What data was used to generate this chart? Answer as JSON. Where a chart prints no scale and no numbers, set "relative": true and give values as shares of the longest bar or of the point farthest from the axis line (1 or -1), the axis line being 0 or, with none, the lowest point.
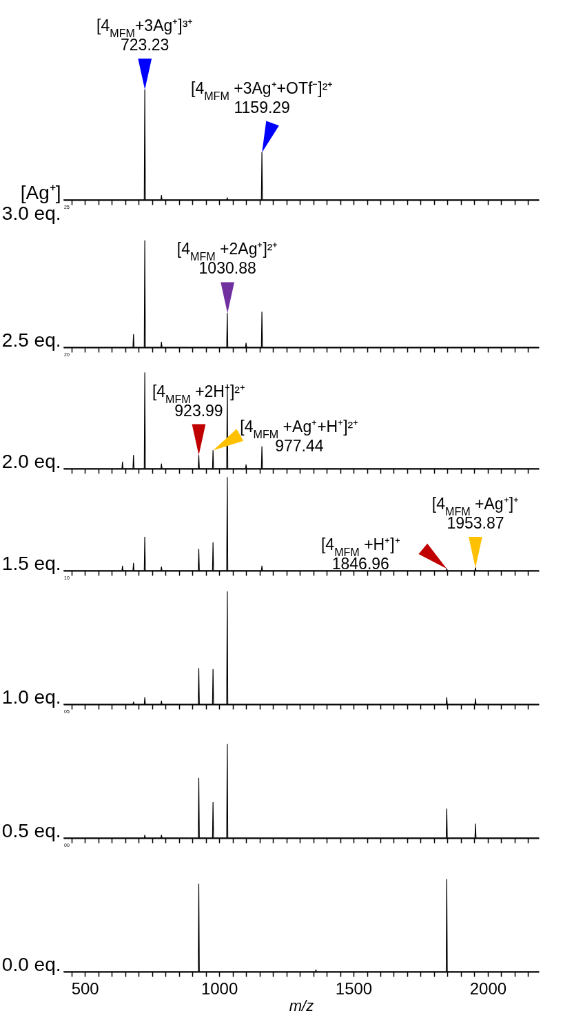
{
  "chart_data": [
    {
      "type": "line",
      "relative": true,
      "ylabel": "[Ag⁺]\n3.0 eq.",
      "tick_labels": false,
      "xlim": [
        420,
        2190
      ],
      "xticks": [
        {
          "value": 450,
          "label": null
        },
        500,
        {
          "value": 550,
          "label": null
        },
        {
          "value": 600,
          "label": null
        },
        {
          "value": 650,
          "label": null
        },
        {
          "value": 700,
          "label": null
        },
        {
          "value": 750,
          "label": null
        },
        {
          "value": 800,
          "label": null
        },
        {
          "value": 850,
          "label": null
        },
        {
          "value": 900,
          "label": null
        },
        {
          "value": 950,
          "label": null
        },
        1000,
        {
          "value": 1050,
          "label": null
        },
        {
          "value": 1100,
          "label": null
        },
        {
          "value": 1150,
          "label": null
        },
        {
          "value": 1200,
          "label": null
        },
        {
          "value": 1250,
          "label": null
        },
        {
          "value": 1300,
          "label": null
        },
        {
          "value": 1350,
          "label": null
        },
        {
          "value": 1400,
          "label": null
        },
        {
          "value": 1450,
          "label": null
        },
        1500,
        {
          "value": 1550,
          "label": null
        },
        {
          "value": 1600,
          "label": null
        },
        {
          "value": 1650,
          "label": null
        },
        {
          "value": 1700,
          "label": null
        },
        {
          "value": 1750,
          "label": null
        },
        {
          "value": 1800,
          "label": null
        },
        {
          "value": 1850,
          "label": null
        },
        {
          "value": 1900,
          "label": null
        },
        {
          "value": 1950,
          "label": null
        },
        2000,
        {
          "value": 2050,
          "label": null
        },
        {
          "value": 2100,
          "label": null
        },
        {
          "value": 2150,
          "label": null
        }
      ],
      "x": [
        420,
        721,
        723,
        725,
        783,
        785,
        787,
        1028,
        1030,
        1032,
        1157,
        1159,
        1161,
        2190
      ],
      "series": [
        {
          "color": "#000000",
          "values": [
            0,
            0,
            1,
            0,
            0,
            0.04,
            0,
            0,
            0.02,
            0,
            0,
            0.43,
            0,
            0
          ]
        }
      ],
      "annotations": [
        {
          "text": "[4$_{MFM}$+3Ag⁺]³⁺\n723.23",
          "x": 723.23,
          "y": 1
        },
        {
          "text": "[4$_{MFM}$ +3Ag⁺+OTf⁻]²⁺\n1159.29",
          "x": 1159.29,
          "y": 0.43
        },
        "25"
      ]
    },
    {
      "type": "line",
      "relative": true,
      "ylabel": "2.5 eq.",
      "tick_labels": false,
      "xlim": [
        420,
        2190
      ],
      "xticks": [
        {
          "value": 450,
          "label": null
        },
        500,
        {
          "value": 550,
          "label": null
        },
        {
          "value": 600,
          "label": null
        },
        {
          "value": 650,
          "label": null
        },
        {
          "value": 700,
          "label": null
        },
        {
          "value": 750,
          "label": null
        },
        {
          "value": 800,
          "label": null
        },
        {
          "value": 850,
          "label": null
        },
        {
          "value": 900,
          "label": null
        },
        {
          "value": 950,
          "label": null
        },
        1000,
        {
          "value": 1050,
          "label": null
        },
        {
          "value": 1100,
          "label": null
        },
        {
          "value": 1150,
          "label": null
        },
        {
          "value": 1200,
          "label": null
        },
        {
          "value": 1250,
          "label": null
        },
        {
          "value": 1300,
          "label": null
        },
        {
          "value": 1350,
          "label": null
        },
        {
          "value": 1400,
          "label": null
        },
        {
          "value": 1450,
          "label": null
        },
        1500,
        {
          "value": 1550,
          "label": null
        },
        {
          "value": 1600,
          "label": null
        },
        {
          "value": 1650,
          "label": null
        },
        {
          "value": 1700,
          "label": null
        },
        {
          "value": 1750,
          "label": null
        },
        {
          "value": 1800,
          "label": null
        },
        {
          "value": 1850,
          "label": null
        },
        {
          "value": 1900,
          "label": null
        },
        {
          "value": 1950,
          "label": null
        },
        2000,
        {
          "value": 2050,
          "label": null
        },
        {
          "value": 2100,
          "label": null
        },
        {
          "value": 2150,
          "label": null
        }
      ],
      "x": [
        420,
        679,
        681,
        683,
        721,
        723,
        725,
        783,
        785,
        787,
        1028,
        1030,
        1032,
        1098,
        1100,
        1102,
        1157,
        1159,
        1161,
        2190
      ],
      "series": [
        {
          "color": "#000000",
          "values": [
            0,
            0,
            0.12,
            0,
            0,
            1,
            0,
            0,
            0.05,
            0,
            0,
            0.32,
            0,
            0,
            0.04,
            0,
            0,
            0.33,
            0,
            0
          ]
        }
      ],
      "annotations": [
        {
          "text": "[4$_{MFM}$ +2Ag⁺]²⁺\n1030.88",
          "x": 1030.88,
          "y": 0.32
        },
        "20"
      ]
    },
    {
      "type": "line",
      "relative": true,
      "ylabel": "2.0 eq.",
      "tick_labels": false,
      "xlim": [
        420,
        2190
      ],
      "xticks": [
        {
          "value": 450,
          "label": null
        },
        500,
        {
          "value": 550,
          "label": null
        },
        {
          "value": 600,
          "label": null
        },
        {
          "value": 650,
          "label": null
        },
        {
          "value": 700,
          "label": null
        },
        {
          "value": 750,
          "label": null
        },
        {
          "value": 800,
          "label": null
        },
        {
          "value": 850,
          "label": null
        },
        {
          "value": 900,
          "label": null
        },
        {
          "value": 950,
          "label": null
        },
        1000,
        {
          "value": 1050,
          "label": null
        },
        {
          "value": 1100,
          "label": null
        },
        {
          "value": 1150,
          "label": null
        },
        {
          "value": 1200,
          "label": null
        },
        {
          "value": 1250,
          "label": null
        },
        {
          "value": 1300,
          "label": null
        },
        {
          "value": 1350,
          "label": null
        },
        {
          "value": 1400,
          "label": null
        },
        {
          "value": 1450,
          "label": null
        },
        1500,
        {
          "value": 1550,
          "label": null
        },
        {
          "value": 1600,
          "label": null
        },
        {
          "value": 1650,
          "label": null
        },
        {
          "value": 1700,
          "label": null
        },
        {
          "value": 1750,
          "label": null
        },
        {
          "value": 1800,
          "label": null
        },
        {
          "value": 1850,
          "label": null
        },
        {
          "value": 1900,
          "label": null
        },
        {
          "value": 1950,
          "label": null
        },
        2000,
        {
          "value": 2050,
          "label": null
        },
        {
          "value": 2100,
          "label": null
        },
        {
          "value": 2150,
          "label": null
        }
      ],
      "x": [
        420,
        638,
        640,
        642,
        679,
        681,
        683,
        721,
        723,
        725,
        783,
        785,
        787,
        922,
        924,
        926,
        975,
        977,
        979,
        1028,
        1030,
        1032,
        1098,
        1100,
        1102,
        1157,
        1159,
        1161,
        2190
      ],
      "series": [
        {
          "color": "#000000",
          "values": [
            0,
            0,
            0.07,
            0,
            0,
            0.14,
            0,
            0,
            1,
            0,
            0,
            0.05,
            0,
            0,
            0.14,
            0,
            0,
            0.19,
            0,
            0,
            0.88,
            0,
            0,
            0.04,
            0,
            0,
            0.23,
            0,
            0
          ]
        }
      ],
      "annotations": [
        {
          "text": "[4$_{MFM}$ +2H⁺]²⁺\n923.99",
          "x": 923.99,
          "y": 0.14
        },
        {
          "text": "[4$_{MFM}$ +Ag⁺+H⁺]²⁺\n977.44",
          "x": 977.44,
          "y": 0.19
        }
      ]
    },
    {
      "type": "line",
      "relative": true,
      "ylabel": "1.5 eq.",
      "tick_labels": false,
      "xlim": [
        420,
        2190
      ],
      "xticks": [
        {
          "value": 450,
          "label": null
        },
        500,
        {
          "value": 550,
          "label": null
        },
        {
          "value": 600,
          "label": null
        },
        {
          "value": 650,
          "label": null
        },
        {
          "value": 700,
          "label": null
        },
        {
          "value": 750,
          "label": null
        },
        {
          "value": 800,
          "label": null
        },
        {
          "value": 850,
          "label": null
        },
        {
          "value": 900,
          "label": null
        },
        {
          "value": 950,
          "label": null
        },
        1000,
        {
          "value": 1050,
          "label": null
        },
        {
          "value": 1100,
          "label": null
        },
        {
          "value": 1150,
          "label": null
        },
        {
          "value": 1200,
          "label": null
        },
        {
          "value": 1250,
          "label": null
        },
        {
          "value": 1300,
          "label": null
        },
        {
          "value": 1350,
          "label": null
        },
        {
          "value": 1400,
          "label": null
        },
        {
          "value": 1450,
          "label": null
        },
        1500,
        {
          "value": 1550,
          "label": null
        },
        {
          "value": 1600,
          "label": null
        },
        {
          "value": 1650,
          "label": null
        },
        {
          "value": 1700,
          "label": null
        },
        {
          "value": 1750,
          "label": null
        },
        {
          "value": 1800,
          "label": null
        },
        {
          "value": 1850,
          "label": null
        },
        {
          "value": 1900,
          "label": null
        },
        {
          "value": 1950,
          "label": null
        },
        2000,
        {
          "value": 2050,
          "label": null
        },
        {
          "value": 2100,
          "label": null
        },
        {
          "value": 2150,
          "label": null
        }
      ],
      "x": [
        420,
        638,
        640,
        642,
        679,
        681,
        683,
        721,
        723,
        725,
        783,
        785,
        787,
        922,
        924,
        926,
        975,
        977,
        979,
        1028,
        1030,
        1032,
        1157,
        1159,
        1161,
        1845,
        1847,
        1849,
        1952,
        1954,
        1956,
        2190
      ],
      "series": [
        {
          "color": "#000000",
          "values": [
            0,
            0,
            0.05,
            0,
            0,
            0.08,
            0,
            0,
            0.36,
            0,
            0,
            0.04,
            0,
            0,
            0.23,
            0,
            0,
            0.3,
            0,
            0,
            1,
            0,
            0,
            0.05,
            0,
            0,
            0.02,
            0,
            0,
            0.03,
            0,
            0
          ]
        }
      ],
      "annotations": [
        {
          "text": "[4$_{MFM}$ +H⁺]⁺\n1846.96",
          "x": 1846.96,
          "y": 0.02
        },
        {
          "text": "[4$_{MFM}$ +Ag⁺]⁺\n1953.87",
          "x": 1953.87,
          "y": 0.03
        },
        "10"
      ]
    },
    {
      "type": "line",
      "relative": true,
      "ylabel": "1.0 eq.",
      "tick_labels": false,
      "xlim": [
        420,
        2190
      ],
      "xticks": [
        {
          "value": 450,
          "label": null
        },
        500,
        {
          "value": 550,
          "label": null
        },
        {
          "value": 600,
          "label": null
        },
        {
          "value": 650,
          "label": null
        },
        {
          "value": 700,
          "label": null
        },
        {
          "value": 750,
          "label": null
        },
        {
          "value": 800,
          "label": null
        },
        {
          "value": 850,
          "label": null
        },
        {
          "value": 900,
          "label": null
        },
        {
          "value": 950,
          "label": null
        },
        1000,
        {
          "value": 1050,
          "label": null
        },
        {
          "value": 1100,
          "label": null
        },
        {
          "value": 1150,
          "label": null
        },
        {
          "value": 1200,
          "label": null
        },
        {
          "value": 1250,
          "label": null
        },
        {
          "value": 1300,
          "label": null
        },
        {
          "value": 1350,
          "label": null
        },
        {
          "value": 1400,
          "label": null
        },
        {
          "value": 1450,
          "label": null
        },
        1500,
        {
          "value": 1550,
          "label": null
        },
        {
          "value": 1600,
          "label": null
        },
        {
          "value": 1650,
          "label": null
        },
        {
          "value": 1700,
          "label": null
        },
        {
          "value": 1750,
          "label": null
        },
        {
          "value": 1800,
          "label": null
        },
        {
          "value": 1850,
          "label": null
        },
        {
          "value": 1900,
          "label": null
        },
        {
          "value": 1950,
          "label": null
        },
        2000,
        {
          "value": 2050,
          "label": null
        },
        {
          "value": 2100,
          "label": null
        },
        {
          "value": 2150,
          "label": null
        }
      ],
      "x": [
        420,
        679,
        681,
        683,
        721,
        723,
        725,
        783,
        785,
        787,
        922,
        924,
        926,
        975,
        977,
        979,
        1028,
        1030,
        1032,
        1845,
        1847,
        1849,
        1952,
        1954,
        1956,
        2190
      ],
      "series": [
        {
          "color": "#000000",
          "values": [
            0,
            0,
            0.02,
            0,
            0,
            0.06,
            0,
            0,
            0.03,
            0,
            0,
            0.32,
            0,
            0,
            0.31,
            0,
            0,
            1,
            0,
            0,
            0.06,
            0,
            0,
            0.05,
            0,
            0
          ]
        }
      ],
      "annotations": [
        "05"
      ]
    },
    {
      "type": "line",
      "relative": true,
      "ylabel": "0.5 eq.",
      "tick_labels": false,
      "xlim": [
        420,
        2190
      ],
      "xticks": [
        {
          "value": 450,
          "label": null
        },
        500,
        {
          "value": 550,
          "label": null
        },
        {
          "value": 600,
          "label": null
        },
        {
          "value": 650,
          "label": null
        },
        {
          "value": 700,
          "label": null
        },
        {
          "value": 750,
          "label": null
        },
        {
          "value": 800,
          "label": null
        },
        {
          "value": 850,
          "label": null
        },
        {
          "value": 900,
          "label": null
        },
        {
          "value": 950,
          "label": null
        },
        1000,
        {
          "value": 1050,
          "label": null
        },
        {
          "value": 1100,
          "label": null
        },
        {
          "value": 1150,
          "label": null
        },
        {
          "value": 1200,
          "label": null
        },
        {
          "value": 1250,
          "label": null
        },
        {
          "value": 1300,
          "label": null
        },
        {
          "value": 1350,
          "label": null
        },
        {
          "value": 1400,
          "label": null
        },
        {
          "value": 1450,
          "label": null
        },
        1500,
        {
          "value": 1550,
          "label": null
        },
        {
          "value": 1600,
          "label": null
        },
        {
          "value": 1650,
          "label": null
        },
        {
          "value": 1700,
          "label": null
        },
        {
          "value": 1750,
          "label": null
        },
        {
          "value": 1800,
          "label": null
        },
        {
          "value": 1850,
          "label": null
        },
        {
          "value": 1900,
          "label": null
        },
        {
          "value": 1950,
          "label": null
        },
        2000,
        {
          "value": 2050,
          "label": null
        },
        {
          "value": 2100,
          "label": null
        },
        {
          "value": 2150,
          "label": null
        }
      ],
      "x": [
        420,
        721,
        723,
        725,
        783,
        785,
        787,
        922,
        924,
        926,
        975,
        977,
        979,
        1028,
        1030,
        1032,
        1845,
        1847,
        1849,
        1952,
        1954,
        1956,
        2190
      ],
      "series": [
        {
          "color": "#000000",
          "values": [
            0,
            0,
            0.03,
            0,
            0,
            0.03,
            0,
            0,
            0.64,
            0,
            0,
            0.38,
            0,
            0,
            1,
            0,
            0,
            0.31,
            0,
            0,
            0.15,
            0,
            0
          ]
        }
      ],
      "annotations": [
        "00"
      ]
    },
    {
      "type": "line",
      "relative": true,
      "ylabel": "0.0 eq.",
      "xlabel": "m/z",
      "tick_labels": "x",
      "xlim": [
        420,
        2190
      ],
      "xticks": [
        {
          "value": 450,
          "label": null
        },
        500,
        {
          "value": 550,
          "label": null
        },
        {
          "value": 600,
          "label": null
        },
        {
          "value": 650,
          "label": null
        },
        {
          "value": 700,
          "label": null
        },
        {
          "value": 750,
          "label": null
        },
        {
          "value": 800,
          "label": null
        },
        {
          "value": 850,
          "label": null
        },
        {
          "value": 900,
          "label": null
        },
        {
          "value": 950,
          "label": null
        },
        1000,
        {
          "value": 1050,
          "label": null
        },
        {
          "value": 1100,
          "label": null
        },
        {
          "value": 1150,
          "label": null
        },
        {
          "value": 1200,
          "label": null
        },
        {
          "value": 1250,
          "label": null
        },
        {
          "value": 1300,
          "label": null
        },
        {
          "value": 1350,
          "label": null
        },
        {
          "value": 1400,
          "label": null
        },
        {
          "value": 1450,
          "label": null
        },
        1500,
        {
          "value": 1550,
          "label": null
        },
        {
          "value": 1600,
          "label": null
        },
        {
          "value": 1650,
          "label": null
        },
        {
          "value": 1700,
          "label": null
        },
        {
          "value": 1750,
          "label": null
        },
        {
          "value": 1800,
          "label": null
        },
        {
          "value": 1850,
          "label": null
        },
        {
          "value": 1900,
          "label": null
        },
        {
          "value": 1950,
          "label": null
        },
        2000,
        {
          "value": 2050,
          "label": null
        },
        {
          "value": 2100,
          "label": null
        },
        {
          "value": 2150,
          "label": null
        }
      ],
      "x": [
        420,
        922,
        924,
        926,
        1358,
        1360,
        1362,
        1845,
        1847,
        1849,
        2190
      ],
      "series": [
        {
          "color": "#000000",
          "values": [
            0,
            0,
            0.95,
            0,
            0,
            0.02,
            0,
            0,
            1,
            0,
            0
          ]
        }
      ]
    }
  ]
}
